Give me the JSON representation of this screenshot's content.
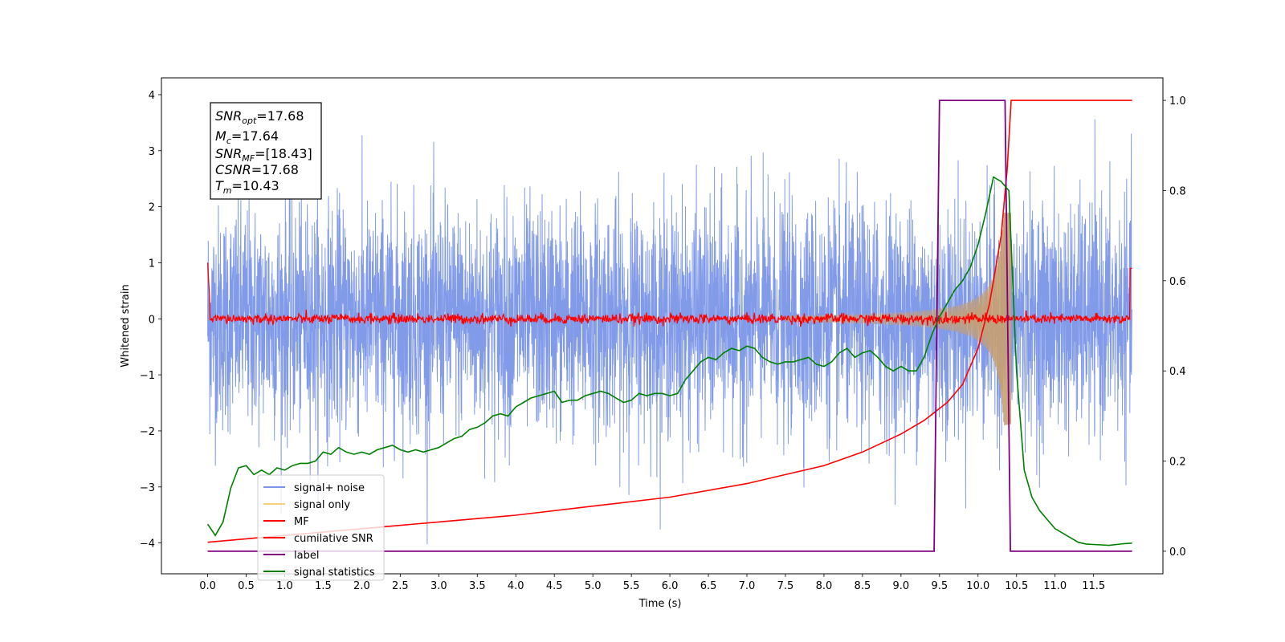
{
  "chart_data": {
    "type": "line",
    "xlabel": "Time (s)",
    "ylabel": "Whitened strain",
    "xlim": [
      -0.6,
      12.4
    ],
    "ylim": [
      -4.55,
      4.3
    ],
    "y2lim": [
      -0.05,
      1.05
    ],
    "x_ticks": [
      "0.0",
      "0.5",
      "1.0",
      "1.5",
      "2.0",
      "2.5",
      "3.0",
      "3.5",
      "4.0",
      "4.5",
      "5.0",
      "5.5",
      "6.0",
      "6.5",
      "7.0",
      "7.5",
      "8.0",
      "8.5",
      "9.0",
      "9.5",
      "10.0",
      "10.5",
      "11.0",
      "11.5"
    ],
    "y_ticks": [
      "4",
      "3",
      "2",
      "1",
      "0",
      "−1",
      "−2",
      "−3",
      "−4"
    ],
    "y2_ticks": [
      "1.0",
      "0.8",
      "0.6",
      "0.4",
      "0.2",
      "0.0"
    ],
    "info_box": {
      "snr_opt": {
        "symbol": "SNR",
        "sub": "opt",
        "value": "=17.68"
      },
      "mc": {
        "symbol": "M",
        "sub": "c",
        "value": "=17.64"
      },
      "snr_mf": {
        "symbol": "SNR",
        "sub": "MF",
        "value": "=[18.43]"
      },
      "csnr": {
        "symbol": "CSNR",
        "sub": "",
        "value": "=17.68"
      },
      "tm": {
        "symbol": "T",
        "sub": "m",
        "value": "=10.43"
      }
    },
    "legend": {
      "placement": "lower-left",
      "entries": [
        {
          "label": "signal+ noise",
          "color": "#7b96e8"
        },
        {
          "label": "signal only",
          "color": "#f5d27a"
        },
        {
          "label": "MF",
          "color": "#ff0000"
        },
        {
          "label": "cumilative SNR",
          "color": "#ff0000"
        },
        {
          "label": "label",
          "color": "#800080"
        },
        {
          "label": "signal statistics",
          "color": "#008000"
        }
      ]
    },
    "series": [
      {
        "name": "signal+ noise",
        "axis": "left",
        "color": "#7b96e8",
        "x_range": [
          0.0,
          12.0
        ],
        "sigma": 1.0,
        "y_envelope": [
          -4.1,
          3.9
        ]
      },
      {
        "name": "signal only",
        "axis": "left",
        "color": "#c8a070",
        "merger_time": 10.43,
        "peak_amplitude": 1.9
      },
      {
        "name": "MF",
        "axis": "left",
        "color": "#ff0000",
        "start_value": 1.0,
        "baseline": 0.0,
        "end_value": 0.9
      },
      {
        "name": "cumilative SNR",
        "axis": "right",
        "color": "#ff0000",
        "x": [
          0.0,
          1.0,
          2.0,
          3.0,
          4.0,
          5.0,
          6.0,
          7.0,
          7.5,
          8.0,
          8.5,
          9.0,
          9.3,
          9.6,
          9.8,
          10.0,
          10.15,
          10.3,
          10.38,
          10.43,
          10.5,
          12.0
        ],
        "y": [
          0.02,
          0.035,
          0.05,
          0.065,
          0.08,
          0.1,
          0.12,
          0.15,
          0.17,
          0.19,
          0.22,
          0.26,
          0.29,
          0.33,
          0.37,
          0.45,
          0.55,
          0.7,
          0.85,
          1.0,
          1.0,
          1.0
        ]
      },
      {
        "name": "label",
        "axis": "right",
        "color": "#800080",
        "x": [
          0.0,
          9.43,
          9.5,
          10.35,
          10.42,
          12.0
        ],
        "y": [
          0.0,
          0.0,
          1.0,
          1.0,
          0.0,
          0.0
        ]
      },
      {
        "name": "signal statistics",
        "axis": "right",
        "color": "#008000",
        "x": [
          0.0,
          0.1,
          0.2,
          0.3,
          0.4,
          0.5,
          0.6,
          0.7,
          0.8,
          0.9,
          1.0,
          1.1,
          1.2,
          1.3,
          1.4,
          1.5,
          1.6,
          1.7,
          1.8,
          1.9,
          2.0,
          2.1,
          2.2,
          2.3,
          2.4,
          2.5,
          2.6,
          2.7,
          2.8,
          2.9,
          3.0,
          3.1,
          3.2,
          3.3,
          3.4,
          3.5,
          3.6,
          3.7,
          3.8,
          3.9,
          4.0,
          4.1,
          4.2,
          4.3,
          4.4,
          4.5,
          4.6,
          4.7,
          4.8,
          4.9,
          5.0,
          5.1,
          5.2,
          5.3,
          5.4,
          5.5,
          5.6,
          5.7,
          5.8,
          5.9,
          6.0,
          6.1,
          6.2,
          6.3,
          6.4,
          6.5,
          6.6,
          6.7,
          6.8,
          6.9,
          7.0,
          7.1,
          7.2,
          7.3,
          7.4,
          7.5,
          7.6,
          7.7,
          7.8,
          7.9,
          8.0,
          8.1,
          8.2,
          8.3,
          8.4,
          8.5,
          8.6,
          8.7,
          8.8,
          8.9,
          9.0,
          9.1,
          9.2,
          9.3,
          9.4,
          9.5,
          9.6,
          9.7,
          9.8,
          9.9,
          10.0,
          10.1,
          10.2,
          10.3,
          10.4,
          10.5,
          10.6,
          10.7,
          10.8,
          10.9,
          11.0,
          11.1,
          11.2,
          11.3,
          11.4,
          11.5,
          11.6,
          11.7,
          11.8,
          11.9,
          12.0
        ],
        "y": [
          0.06,
          0.035,
          0.065,
          0.14,
          0.185,
          0.19,
          0.17,
          0.18,
          0.17,
          0.185,
          0.18,
          0.19,
          0.195,
          0.195,
          0.2,
          0.22,
          0.215,
          0.23,
          0.22,
          0.215,
          0.22,
          0.215,
          0.225,
          0.23,
          0.235,
          0.225,
          0.22,
          0.225,
          0.22,
          0.225,
          0.23,
          0.24,
          0.25,
          0.255,
          0.27,
          0.275,
          0.285,
          0.3,
          0.305,
          0.3,
          0.32,
          0.33,
          0.34,
          0.345,
          0.35,
          0.355,
          0.33,
          0.335,
          0.335,
          0.345,
          0.35,
          0.355,
          0.35,
          0.34,
          0.33,
          0.335,
          0.35,
          0.345,
          0.35,
          0.35,
          0.345,
          0.35,
          0.38,
          0.4,
          0.42,
          0.43,
          0.425,
          0.44,
          0.45,
          0.445,
          0.455,
          0.45,
          0.43,
          0.42,
          0.415,
          0.42,
          0.42,
          0.425,
          0.43,
          0.415,
          0.41,
          0.42,
          0.44,
          0.45,
          0.43,
          0.44,
          0.445,
          0.43,
          0.41,
          0.4,
          0.41,
          0.4,
          0.4,
          0.43,
          0.48,
          0.52,
          0.55,
          0.58,
          0.6,
          0.63,
          0.68,
          0.75,
          0.83,
          0.82,
          0.8,
          0.4,
          0.18,
          0.12,
          0.09,
          0.07,
          0.05,
          0.04,
          0.03,
          0.02,
          0.016,
          0.015,
          0.014,
          0.013,
          0.015,
          0.017,
          0.018
        ]
      }
    ]
  }
}
